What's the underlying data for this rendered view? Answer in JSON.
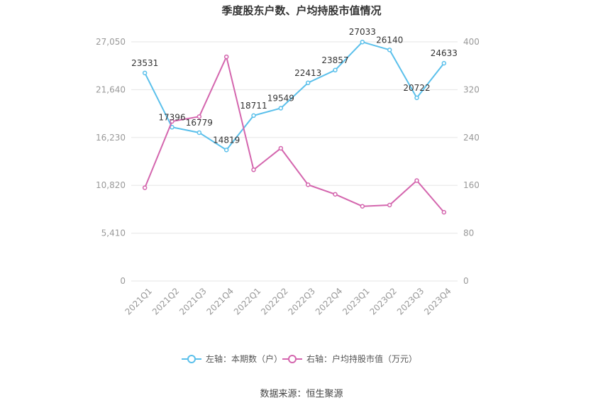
{
  "chart_data": {
    "type": "line",
    "title": "季度股东户数、户均持股市值情况",
    "categories": [
      "2021Q1",
      "2021Q2",
      "2021Q3",
      "2021Q4",
      "2022Q1",
      "2022Q2",
      "2022Q3",
      "2022Q4",
      "2023Q1",
      "2023Q2",
      "2023Q3",
      "2023Q4"
    ],
    "left_axis": {
      "ticks": [
        "0",
        "5,410",
        "10,820",
        "16,230",
        "21,640",
        "27,050"
      ],
      "ylim": [
        0,
        27050
      ]
    },
    "right_axis": {
      "ticks": [
        "0",
        "80",
        "160",
        "240",
        "320",
        "400"
      ],
      "ylim": [
        0,
        400
      ]
    },
    "series": [
      {
        "name": "左轴：本期数（户）",
        "axis": "left",
        "color": "#5bc0eb",
        "values": [
          23531,
          17396,
          16779,
          14819,
          18711,
          19549,
          22413,
          23857,
          27033,
          26140,
          20722,
          24633
        ],
        "labels": [
          "23531",
          "17396",
          "16779",
          "14819",
          "18711",
          "19549",
          "22413",
          "23857",
          "27033",
          "26140",
          "20722",
          "24633"
        ]
      },
      {
        "name": "右轴：户均持股市值（万元）",
        "axis": "right",
        "color": "#d466ae",
        "values": [
          156,
          267,
          275,
          375,
          186,
          222,
          161,
          145,
          125,
          127,
          168,
          115
        ]
      }
    ],
    "grid": true,
    "legend_position": "bottom"
  },
  "source_text": "数据来源：恒生聚源"
}
